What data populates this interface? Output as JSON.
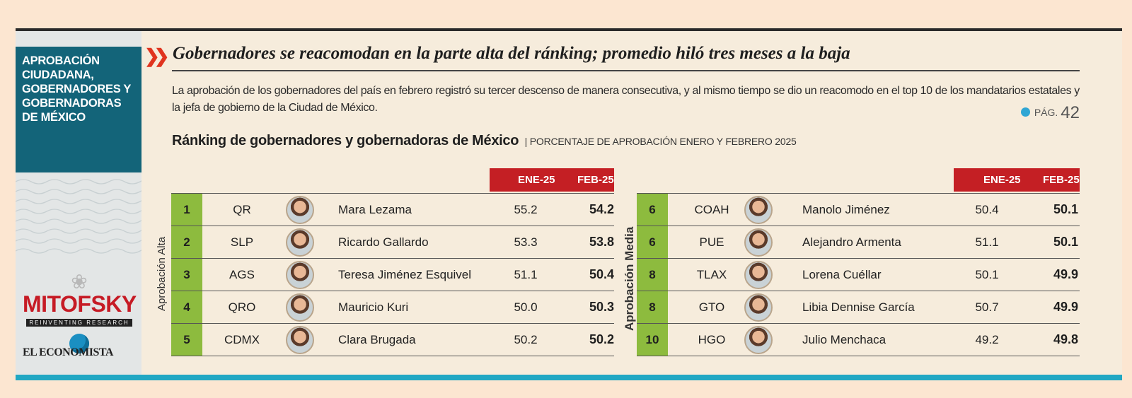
{
  "sidebar": {
    "section_title": "APROBACIÓN CIUDADANA, GOBERNADORES Y GOBERNADORAS DE MÉXICO",
    "logo1_name": "MITOFSKY",
    "logo1_tagline": "REINVENTING RESEARCH",
    "logo2_name": "EL ECONOMISTA"
  },
  "headline": "Gobernadores se reacomodan en la parte alta del ránking; promedio hiló tres meses a la baja",
  "summary": "La aprobación de los gobernadores del país en febrero registró su tercer descenso de manera consecutiva, y al mismo tiempo se dio un reacomodo en el top 10 de los mandatarios estatales y la jefa de gobierno de la Ciudad de México.",
  "page_ref": {
    "label": "PÁG.",
    "number": "42"
  },
  "table_title": "Ránking de gobernadores y gobernadoras de México",
  "table_subtitle": "| PORCENTAJE DE APROBACIÓN ENERO Y FEBRERO 2025",
  "col_ene": "ENE-25",
  "col_feb": "FEB-25",
  "groups": [
    {
      "label": "Aprobación Alta",
      "rows": [
        {
          "rank": "1",
          "state": "QR",
          "name": "Mara Lezama",
          "ene": "55.2",
          "feb": "54.2"
        },
        {
          "rank": "2",
          "state": "SLP",
          "name": "Ricardo Gallardo",
          "ene": "53.3",
          "feb": "53.8"
        },
        {
          "rank": "3",
          "state": "AGS",
          "name": "Teresa Jiménez Esquivel",
          "ene": "51.1",
          "feb": "50.4"
        },
        {
          "rank": "4",
          "state": "QRO",
          "name": "Mauricio Kuri",
          "ene": "50.0",
          "feb": "50.3"
        },
        {
          "rank": "5",
          "state": "CDMX",
          "name": "Clara Brugada",
          "ene": "50.2",
          "feb": "50.2"
        }
      ]
    },
    {
      "label": "Aprobación Media",
      "rows": [
        {
          "rank": "6",
          "state": "COAH",
          "name": "Manolo Jiménez",
          "ene": "50.4",
          "feb": "50.1"
        },
        {
          "rank": "6",
          "state": "PUE",
          "name": "Alejandro Armenta",
          "ene": "51.1",
          "feb": "50.1"
        },
        {
          "rank": "8",
          "state": "TLAX",
          "name": "Lorena Cuéllar",
          "ene": "50.1",
          "feb": "49.9"
        },
        {
          "rank": "8",
          "state": "GTO",
          "name": "Libia Dennise García",
          "ene": "50.7",
          "feb": "49.9"
        },
        {
          "rank": "10",
          "state": "HGO",
          "name": "Julio Menchaca",
          "ene": "49.2",
          "feb": "49.8"
        }
      ]
    }
  ]
}
